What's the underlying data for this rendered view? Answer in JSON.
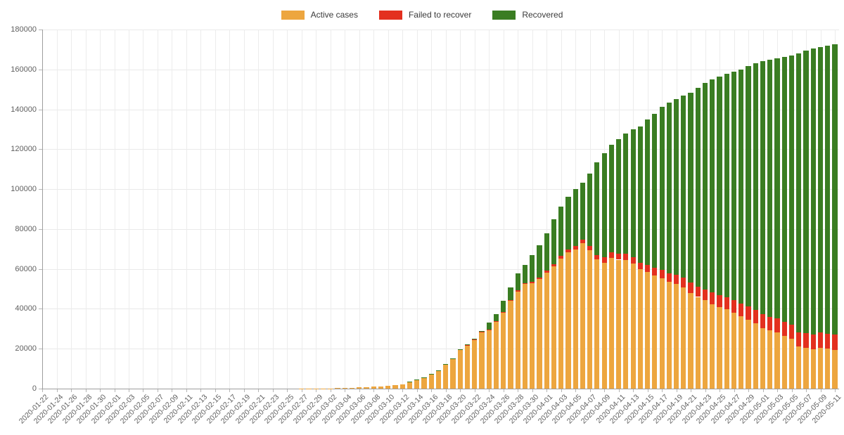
{
  "colors": {
    "grid": "#e9e9e9",
    "axis": "#9e9e9e",
    "tick_text": "#606060",
    "legend_text": "#3a3a3a"
  },
  "chart_data": {
    "type": "bar",
    "stacked": true,
    "title": "",
    "xlabel": "",
    "ylabel": "",
    "ylim": [
      0,
      180000
    ],
    "y_tick_step": 20000,
    "y_tick_labels": [
      "0",
      "20000",
      "40000",
      "60000",
      "80000",
      "100000",
      "120000",
      "140000",
      "160000",
      "180000"
    ],
    "x_tick_every": 2,
    "grid": true,
    "legend_position": "top-center",
    "stack_order_bottom_to_top": [
      "Active cases",
      "Failed to recover",
      "Recovered"
    ],
    "dates": [
      "2020-01-22",
      "2020-01-23",
      "2020-01-24",
      "2020-01-25",
      "2020-01-26",
      "2020-01-27",
      "2020-01-28",
      "2020-01-29",
      "2020-01-30",
      "2020-01-31",
      "2020-02-01",
      "2020-02-02",
      "2020-02-03",
      "2020-02-04",
      "2020-02-05",
      "2020-02-06",
      "2020-02-07",
      "2020-02-08",
      "2020-02-09",
      "2020-02-10",
      "2020-02-11",
      "2020-02-12",
      "2020-02-13",
      "2020-02-14",
      "2020-02-15",
      "2020-02-16",
      "2020-02-17",
      "2020-02-18",
      "2020-02-19",
      "2020-02-20",
      "2020-02-21",
      "2020-02-22",
      "2020-02-23",
      "2020-02-24",
      "2020-02-25",
      "2020-02-26",
      "2020-02-27",
      "2020-02-28",
      "2020-02-29",
      "2020-03-01",
      "2020-03-02",
      "2020-03-03",
      "2020-03-04",
      "2020-03-05",
      "2020-03-06",
      "2020-03-07",
      "2020-03-08",
      "2020-03-09",
      "2020-03-10",
      "2020-03-11",
      "2020-03-12",
      "2020-03-13",
      "2020-03-14",
      "2020-03-15",
      "2020-03-16",
      "2020-03-17",
      "2020-03-18",
      "2020-03-19",
      "2020-03-20",
      "2020-03-21",
      "2020-03-22",
      "2020-03-23",
      "2020-03-24",
      "2020-03-25",
      "2020-03-26",
      "2020-03-27",
      "2020-03-28",
      "2020-03-29",
      "2020-03-30",
      "2020-03-31",
      "2020-04-01",
      "2020-04-02",
      "2020-04-03",
      "2020-04-04",
      "2020-04-05",
      "2020-04-06",
      "2020-04-07",
      "2020-04-08",
      "2020-04-09",
      "2020-04-10",
      "2020-04-11",
      "2020-04-12",
      "2020-04-13",
      "2020-04-14",
      "2020-04-15",
      "2020-04-16",
      "2020-04-17",
      "2020-04-18",
      "2020-04-19",
      "2020-04-20",
      "2020-04-21",
      "2020-04-22",
      "2020-04-23",
      "2020-04-24",
      "2020-04-25",
      "2020-04-26",
      "2020-04-27",
      "2020-04-28",
      "2020-04-29",
      "2020-04-30",
      "2020-05-01",
      "2020-05-02",
      "2020-05-03",
      "2020-05-04",
      "2020-05-05",
      "2020-05-06",
      "2020-05-07",
      "2020-05-08",
      "2020-05-09",
      "2020-05-10",
      "2020-05-11"
    ],
    "series": [
      {
        "name": "Active cases",
        "color": "#eda63f",
        "values": [
          0,
          0,
          0,
          0,
          0,
          1,
          4,
          4,
          4,
          5,
          8,
          10,
          12,
          12,
          12,
          12,
          13,
          13,
          14,
          14,
          16,
          16,
          15,
          15,
          15,
          15,
          15,
          4,
          4,
          4,
          2,
          2,
          2,
          2,
          3,
          12,
          30,
          32,
          63,
          114,
          143,
          180,
          246,
          466,
          653,
          781,
          1022,
          1156,
          1437,
          1880,
          2050,
          3622,
          4530,
          5738,
          7188,
          9166,
          12194,
          15163,
          19601,
          21896,
          24513,
          28480,
          29586,
          33570,
          37998,
          43871,
          48781,
          52351,
          52740,
          54933,
          58241,
          61247,
          65309,
          68248,
          69839,
          72864,
          69566,
          64647,
          63167,
          65491,
          64637,
          64532,
          62578,
          59865,
          58349,
          56646,
          55245,
          53483,
          52598,
          50703,
          48058,
          45969,
          44254,
          42439,
          40836,
          39794,
          38132,
          36198,
          34672,
          32886,
          30441,
          29155,
          28198,
          26459,
          24861,
          20987,
          20338,
          19778,
          20475,
          19910,
          19298
        ]
      },
      {
        "name": "Failed to recover",
        "color": "#e3301f",
        "values": [
          0,
          0,
          0,
          0,
          0,
          0,
          0,
          0,
          0,
          0,
          0,
          0,
          0,
          0,
          0,
          0,
          0,
          0,
          0,
          0,
          0,
          0,
          0,
          0,
          0,
          0,
          0,
          0,
          0,
          0,
          0,
          0,
          0,
          0,
          0,
          0,
          0,
          0,
          0,
          0,
          0,
          0,
          0,
          0,
          0,
          0,
          0,
          2,
          2,
          3,
          3,
          7,
          9,
          11,
          17,
          24,
          28,
          44,
          67,
          84,
          94,
          123,
          157,
          206,
          267,
          342,
          433,
          533,
          645,
          775,
          931,
          1107,
          1275,
          1444,
          1584,
          1810,
          2016,
          2349,
          2607,
          2767,
          2871,
          3022,
          3194,
          3294,
          3804,
          4052,
          4352,
          4459,
          4586,
          4862,
          5033,
          5279,
          5575,
          5760,
          5877,
          5976,
          6126,
          6314,
          6467,
          6623,
          6736,
          6812,
          6866,
          6993,
          7046,
          7275,
          7392,
          7510,
          7549,
          7569,
          7661
        ]
      },
      {
        "name": "Recovered",
        "color": "#3a7d22",
        "values": [
          0,
          0,
          0,
          0,
          0,
          0,
          0,
          0,
          0,
          0,
          0,
          0,
          0,
          0,
          0,
          0,
          0,
          0,
          0,
          0,
          0,
          0,
          1,
          1,
          1,
          1,
          1,
          12,
          12,
          12,
          14,
          14,
          14,
          14,
          14,
          15,
          16,
          16,
          16,
          16,
          16,
          16,
          16,
          16,
          17,
          18,
          18,
          18,
          18,
          25,
          25,
          46,
          46,
          46,
          67,
          67,
          105,
          113,
          180,
          233,
          266,
          453,
          3243,
          3547,
          5673,
          6658,
          8481,
          9211,
          13500,
          16100,
          18700,
          22440,
          24575,
          26400,
          28700,
          28700,
          36081,
          46300,
          52407,
          53913,
          57400,
          60300,
          64300,
          68200,
          72600,
          77000,
          81800,
          85400,
          88000,
          91500,
          95200,
          99400,
          103300,
          106800,
          109800,
          112000,
          114500,
          117400,
          120400,
          123500,
          126900,
          129000,
          130600,
          132700,
          135100,
          139900,
          141700,
          143300,
          143300,
          144400,
          145617
        ]
      }
    ]
  }
}
